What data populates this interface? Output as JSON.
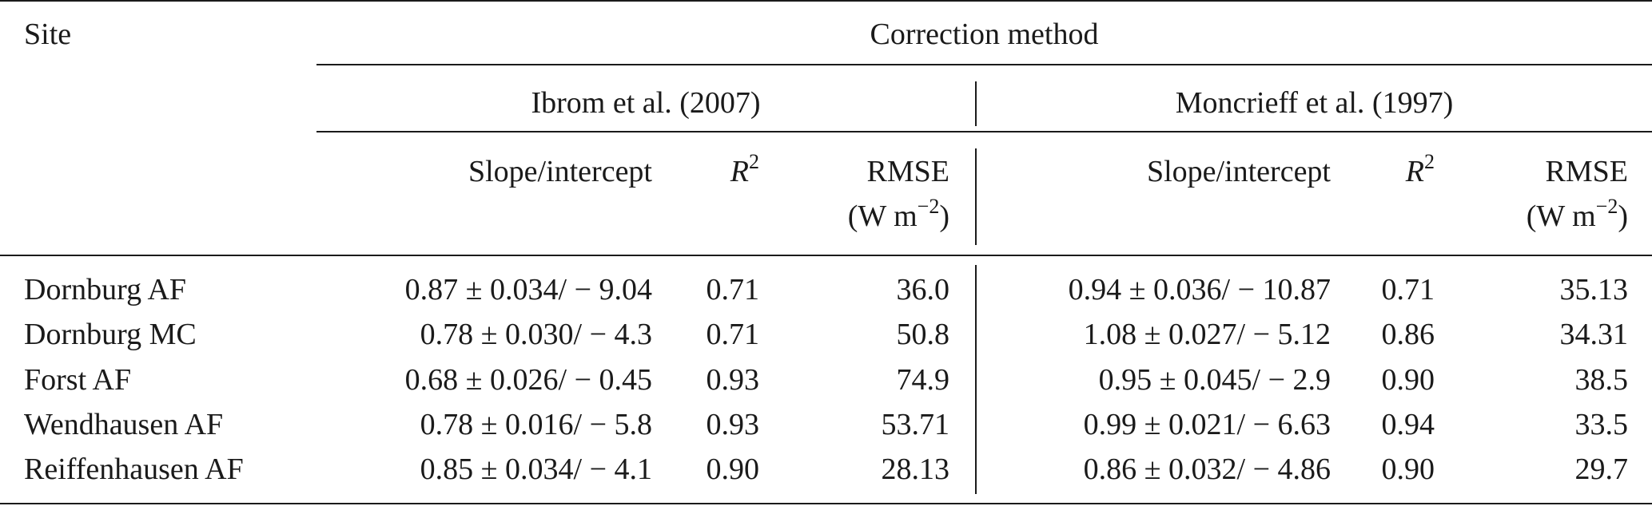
{
  "table": {
    "col_site": "Site",
    "col_group": "Correction method",
    "methods": [
      {
        "name": "Ibrom et al. (2007)"
      },
      {
        "name": "Moncrieff et al. (1997)"
      }
    ],
    "sub_headers": {
      "slope": "Slope/intercept",
      "r2_base": "R",
      "r2_sup": "2",
      "rmse": "RMSE",
      "rmse_unit_open": "(W m",
      "rmse_unit_sup": "−2",
      "rmse_unit_close": ")"
    },
    "rows": [
      {
        "site": "Dornburg AF",
        "ibrom_slope": "0.87 ± 0.034/ − 9.04",
        "ibrom_r2": "0.71",
        "ibrom_rmse": "36.0",
        "mon_slope": "0.94 ± 0.036/ − 10.87",
        "mon_r2": "0.71",
        "mon_rmse": "35.13"
      },
      {
        "site": "Dornburg MC",
        "ibrom_slope": "0.78 ± 0.030/ − 4.3",
        "ibrom_r2": "0.71",
        "ibrom_rmse": "50.8",
        "mon_slope": "1.08 ± 0.027/ − 5.12",
        "mon_r2": "0.86",
        "mon_rmse": "34.31"
      },
      {
        "site": "Forst AF",
        "ibrom_slope": "0.68 ± 0.026/ − 0.45",
        "ibrom_r2": "0.93",
        "ibrom_rmse": "74.9",
        "mon_slope": "0.95 ± 0.045/ − 2.9",
        "mon_r2": "0.90",
        "mon_rmse": "38.5"
      },
      {
        "site": "Wendhausen AF",
        "ibrom_slope": "0.78 ± 0.016/ − 5.8",
        "ibrom_r2": "0.93",
        "ibrom_rmse": "53.71",
        "mon_slope": "0.99 ± 0.021/ − 6.63",
        "mon_r2": "0.94",
        "mon_rmse": "33.5"
      },
      {
        "site": "Reiffenhausen AF",
        "ibrom_slope": "0.85 ± 0.034/ − 4.1",
        "ibrom_r2": "0.90",
        "ibrom_rmse": "28.13",
        "mon_slope": "0.86 ± 0.032/ − 4.86",
        "mon_r2": "0.90",
        "mon_rmse": "29.7"
      }
    ]
  }
}
